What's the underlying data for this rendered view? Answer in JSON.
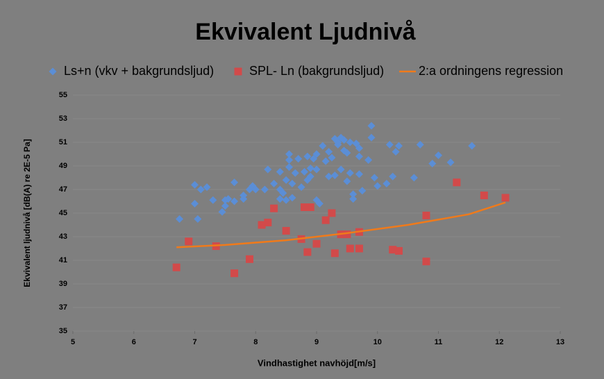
{
  "chart_data": {
    "type": "scatter",
    "title": "Ekvivalent Ljudnivå",
    "xlabel": "Vindhastighet navhöjd[m/s]",
    "ylabel": "Ekvivalent ljudnivå [dB(A) re 2E-5 Pa]",
    "xlim": [
      5,
      13
    ],
    "ylim": [
      35,
      55
    ],
    "xticks": [
      5,
      6,
      7,
      8,
      9,
      10,
      11,
      12,
      13
    ],
    "yticks": [
      35,
      37,
      39,
      41,
      43,
      45,
      47,
      49,
      51,
      53,
      55
    ],
    "grid": true,
    "legend": "top",
    "series": [
      {
        "name": "Ls+n (vkv + bakgrundsljud)",
        "type": "scatter",
        "marker": "diamond",
        "color": "#5b8ed6",
        "x": [
          6.75,
          7.0,
          7.0,
          7.05,
          7.1,
          7.2,
          7.3,
          7.45,
          7.5,
          7.5,
          7.55,
          7.65,
          7.65,
          7.8,
          7.8,
          7.9,
          7.95,
          8.0,
          8.15,
          8.2,
          8.3,
          8.4,
          8.4,
          8.4,
          8.45,
          8.5,
          8.5,
          8.55,
          8.55,
          8.55,
          8.6,
          8.6,
          8.65,
          8.7,
          8.75,
          8.8,
          8.85,
          8.85,
          8.9,
          8.9,
          8.95,
          9.0,
          9.0,
          9.0,
          9.05,
          9.1,
          9.15,
          9.2,
          9.2,
          9.25,
          9.3,
          9.3,
          9.35,
          9.35,
          9.4,
          9.4,
          9.45,
          9.45,
          9.5,
          9.5,
          9.55,
          9.55,
          9.6,
          9.6,
          9.65,
          9.7,
          9.7,
          9.7,
          9.75,
          9.85,
          9.9,
          9.9,
          9.95,
          10.0,
          10.15,
          10.2,
          10.25,
          10.3,
          10.35,
          10.6,
          10.7,
          10.9,
          11.0,
          11.2,
          11.55
        ],
        "values": [
          44.5,
          47.4,
          45.8,
          44.5,
          47.0,
          47.2,
          46.1,
          45.1,
          45.6,
          46.1,
          46.2,
          47.6,
          46.0,
          46.5,
          46.2,
          47.0,
          47.3,
          47.0,
          47.0,
          48.7,
          47.5,
          46.2,
          47.0,
          48.5,
          46.7,
          47.8,
          46.1,
          49.5,
          50.0,
          48.9,
          46.3,
          47.5,
          48.4,
          49.6,
          47.2,
          48.5,
          49.8,
          47.8,
          48.8,
          48.1,
          49.6,
          48.7,
          50.0,
          46.1,
          45.8,
          50.7,
          49.4,
          50.2,
          48.1,
          49.7,
          51.3,
          48.2,
          50.8,
          51.0,
          51.4,
          48.7,
          50.3,
          51.2,
          47.7,
          50.1,
          51.0,
          48.4,
          46.2,
          46.6,
          50.9,
          50.5,
          48.3,
          49.8,
          46.9,
          49.5,
          52.4,
          51.4,
          48.0,
          47.3,
          47.5,
          50.8,
          48.1,
          50.2,
          50.7,
          48.0,
          50.8,
          49.2,
          49.9,
          49.3,
          50.7
        ]
      },
      {
        "name": "SPL- Ln (bakgrundsljud)",
        "type": "scatter",
        "marker": "square",
        "color": "#d24a4a",
        "x": [
          6.7,
          6.9,
          7.35,
          7.65,
          7.9,
          8.1,
          8.2,
          8.3,
          8.5,
          8.75,
          8.8,
          8.85,
          8.9,
          9.0,
          9.15,
          9.25,
          9.3,
          9.4,
          9.5,
          9.55,
          9.7,
          9.7,
          10.25,
          10.35,
          10.8,
          10.8,
          11.3,
          11.75,
          12.1
        ],
        "values": [
          40.4,
          42.6,
          42.2,
          39.9,
          41.1,
          44.0,
          44.2,
          45.4,
          43.5,
          42.8,
          45.5,
          41.7,
          45.5,
          42.4,
          44.4,
          45.0,
          41.6,
          43.2,
          43.2,
          42.0,
          43.4,
          42.0,
          41.9,
          41.8,
          44.8,
          40.9,
          47.6,
          46.5,
          46.3
        ]
      },
      {
        "name": "2:a ordningens regression",
        "type": "line",
        "color": "#f07a1a",
        "x": [
          6.7,
          7.5,
          8.5,
          9.5,
          10.5,
          11.5,
          12.1
        ],
        "values": [
          42.1,
          42.3,
          42.7,
          43.3,
          44.0,
          44.9,
          45.9
        ]
      }
    ]
  }
}
